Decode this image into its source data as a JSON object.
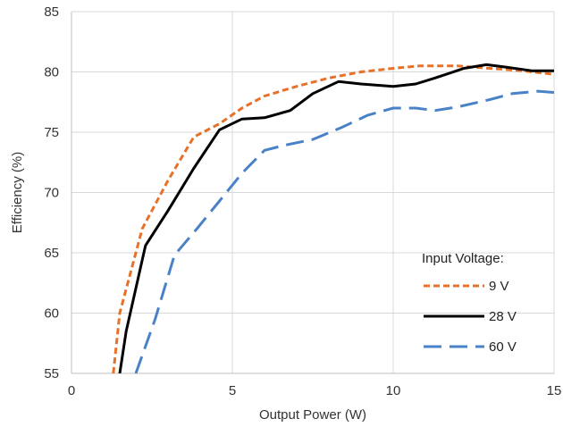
{
  "chart_data": {
    "type": "line",
    "title": "",
    "xlabel": "Output Power (W)",
    "ylabel": "Efficiency (%)",
    "xlim": [
      0,
      15
    ],
    "ylim": [
      55,
      85
    ],
    "xticks": [
      0,
      5,
      10,
      15
    ],
    "yticks": [
      55,
      60,
      65,
      70,
      75,
      80,
      85
    ],
    "grid": true,
    "legend": {
      "title": "Input Voltage:",
      "placement": "bottom-right"
    },
    "series": [
      {
        "name": "9 V",
        "color": "#E8712A",
        "dash": "dotted",
        "points": [
          [
            1.3,
            55.0
          ],
          [
            1.5,
            60.0
          ],
          [
            2.2,
            67.0
          ],
          [
            3.0,
            71.0
          ],
          [
            3.8,
            74.6
          ],
          [
            4.6,
            75.7
          ],
          [
            5.3,
            77.0
          ],
          [
            6.0,
            78.0
          ],
          [
            7.0,
            78.8
          ],
          [
            8.0,
            79.5
          ],
          [
            9.0,
            80.0
          ],
          [
            10.0,
            80.3
          ],
          [
            10.8,
            80.5
          ],
          [
            12.0,
            80.5
          ],
          [
            13.0,
            80.3
          ],
          [
            14.0,
            80.1
          ],
          [
            15.0,
            79.8
          ]
        ]
      },
      {
        "name": "28 V",
        "color": "#000000",
        "dash": "solid",
        "points": [
          [
            1.5,
            55.0
          ],
          [
            1.7,
            58.5
          ],
          [
            2.3,
            65.6
          ],
          [
            3.0,
            68.5
          ],
          [
            3.8,
            72.0
          ],
          [
            4.6,
            75.2
          ],
          [
            5.3,
            76.1
          ],
          [
            6.0,
            76.2
          ],
          [
            6.8,
            76.8
          ],
          [
            7.5,
            78.2
          ],
          [
            8.3,
            79.2
          ],
          [
            9.0,
            79.0
          ],
          [
            10.0,
            78.8
          ],
          [
            10.7,
            79.0
          ],
          [
            11.3,
            79.5
          ],
          [
            12.2,
            80.3
          ],
          [
            12.9,
            80.6
          ],
          [
            13.5,
            80.4
          ],
          [
            14.3,
            80.1
          ],
          [
            15.0,
            80.1
          ]
        ]
      },
      {
        "name": "60 V",
        "color": "#4A82C8",
        "dash": "dashed",
        "points": [
          [
            2.0,
            55.0
          ],
          [
            2.6,
            59.5
          ],
          [
            3.2,
            64.8
          ],
          [
            3.9,
            67.0
          ],
          [
            4.6,
            69.3
          ],
          [
            5.3,
            71.6
          ],
          [
            6.0,
            73.5
          ],
          [
            6.6,
            73.9
          ],
          [
            7.5,
            74.4
          ],
          [
            8.4,
            75.4
          ],
          [
            9.2,
            76.4
          ],
          [
            10.0,
            77.0
          ],
          [
            10.7,
            77.0
          ],
          [
            11.3,
            76.8
          ],
          [
            12.0,
            77.1
          ],
          [
            13.0,
            77.7
          ],
          [
            13.7,
            78.2
          ],
          [
            14.5,
            78.4
          ],
          [
            15.0,
            78.3
          ]
        ]
      }
    ]
  }
}
